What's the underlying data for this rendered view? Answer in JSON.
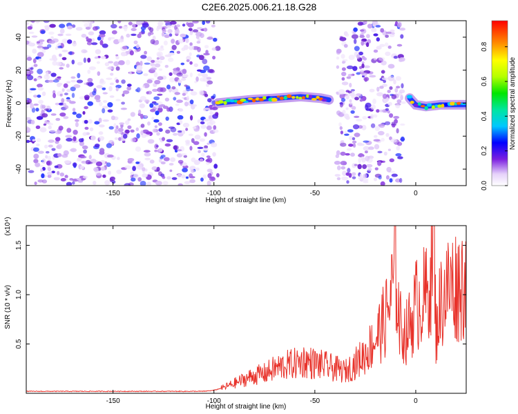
{
  "title": "C2E6.2025.006.21.18.G28",
  "chart_data": [
    {
      "type": "heatmap",
      "title": "C2E6.2025.006.21.18.G28",
      "xlabel": "Height of straight line (km)",
      "ylabel": "Frequency (Hz)",
      "xlim": [
        -193,
        25
      ],
      "ylim": [
        -50,
        50
      ],
      "x_ticks": [
        -150,
        -100,
        -50,
        0
      ],
      "x_tick_labels": [
        "-150",
        "-100",
        "-50",
        "0"
      ],
      "y_ticks": [
        -40,
        -20,
        0,
        20,
        40
      ],
      "y_tick_labels": [
        "-40",
        "-20",
        "0",
        "20",
        "40"
      ],
      "colorbar": {
        "label": "Normalized spectral amplitude",
        "range": [
          0,
          0.95
        ],
        "ticks": [
          0.0,
          0.2,
          0.4,
          0.6,
          0.8
        ],
        "tick_labels": [
          "0.0",
          "0.2",
          "0.4",
          "0.6",
          "0.8"
        ]
      },
      "noise_regions": [
        [
          -193,
          -98
        ],
        [
          -39,
          -6
        ]
      ],
      "signal_segments": [
        {
          "x": [
            -98,
            -82,
            -68,
            -57,
            -47,
            -43
          ],
          "y": [
            0,
            2,
            3,
            4,
            3,
            2
          ]
        },
        {
          "x": [
            -3,
            0,
            5,
            12,
            20,
            25
          ],
          "y": [
            3,
            -1,
            -2,
            -1,
            -1,
            -1
          ]
        }
      ]
    },
    {
      "type": "line",
      "xlabel": "Height of straight line (km)",
      "ylabel": "SNR (10 * v/v)",
      "y_multiplier_label": "(x10⁴)",
      "xlim": [
        -193,
        25
      ],
      "ylim": [
        0,
        1.7
      ],
      "x_ticks": [
        -150,
        -100,
        -50,
        0
      ],
      "x_tick_labels": [
        "-150",
        "-100",
        "-50",
        "0"
      ],
      "y_ticks": [
        0.5,
        1.0,
        1.5
      ],
      "y_tick_labels": [
        "0.5",
        "1.0",
        "1.5"
      ],
      "color": "#e8322a",
      "series": [
        {
          "x": [
            -193,
            -180,
            -160,
            -140,
            -120,
            -105,
            -100,
            -95,
            -90,
            -85,
            -80,
            -75,
            -70,
            -65,
            -60,
            -55,
            -50,
            -45,
            -40,
            -35,
            -30,
            -25,
            -20,
            -15,
            -12,
            -10,
            -8,
            -5,
            -2,
            0,
            3,
            6,
            9,
            10,
            12,
            15,
            18,
            20,
            22,
            25
          ],
          "y": [
            0.02,
            0.02,
            0.02,
            0.02,
            0.02,
            0.02,
            0.03,
            0.06,
            0.1,
            0.14,
            0.18,
            0.2,
            0.25,
            0.28,
            0.3,
            0.33,
            0.3,
            0.28,
            0.25,
            0.22,
            0.3,
            0.4,
            0.55,
            0.75,
            1.0,
            1.3,
            0.7,
            0.6,
            0.75,
            0.9,
            0.95,
            1.0,
            1.6,
            0.6,
            0.9,
            1.05,
            1.1,
            1.1,
            1.12,
            1.15
          ]
        }
      ]
    }
  ]
}
